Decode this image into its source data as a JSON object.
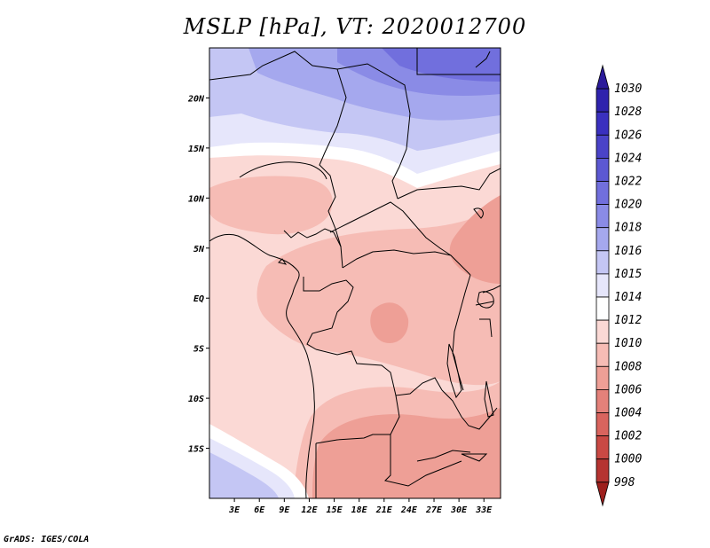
{
  "title": "MSLP [hPa], VT: 2020012700",
  "credit": "GrADS: IGES/COLA",
  "map": {
    "lon_range": [
      0,
      35
    ],
    "lat_range": [
      -20,
      25
    ],
    "lat_labels": [
      {
        "lat": 20,
        "label": "20N"
      },
      {
        "lat": 15,
        "label": "15N"
      },
      {
        "lat": 10,
        "label": "10N"
      },
      {
        "lat": 5,
        "label": "5N"
      },
      {
        "lat": 0,
        "label": "EQ"
      },
      {
        "lat": -5,
        "label": "5S"
      },
      {
        "lat": -10,
        "label": "10S"
      },
      {
        "lat": -15,
        "label": "15S"
      }
    ],
    "lon_labels": [
      {
        "lon": 3,
        "label": "3E"
      },
      {
        "lon": 6,
        "label": "6E"
      },
      {
        "lon": 9,
        "label": "9E"
      },
      {
        "lon": 12,
        "label": "12E"
      },
      {
        "lon": 15,
        "label": "15E"
      },
      {
        "lon": 18,
        "label": "18E"
      },
      {
        "lon": 21,
        "label": "21E"
      },
      {
        "lon": 24,
        "label": "24E"
      },
      {
        "lon": 27,
        "label": "27E"
      },
      {
        "lon": 30,
        "label": "30E"
      },
      {
        "lon": 33,
        "label": "33E"
      }
    ]
  },
  "colorbar": {
    "levels": [
      "1030",
      "1028",
      "1026",
      "1024",
      "1022",
      "1020",
      "1018",
      "1016",
      "1015",
      "1014",
      "1012",
      "1010",
      "1008",
      "1006",
      "1004",
      "1002",
      "1000",
      "998"
    ],
    "colors": [
      "#2b1b9a",
      "#2f23ad",
      "#3a30bf",
      "#4a43c8",
      "#5c58d2",
      "#716fdd",
      "#8a8be6",
      "#a5a8ee",
      "#c4c6f4",
      "#e6e6fb",
      "#ffffff",
      "#fbd9d5",
      "#f6bcb5",
      "#ee9f96",
      "#e4817a",
      "#d9645e",
      "#c94944",
      "#b53431",
      "#9d1f1c"
    ]
  },
  "field_colors": {
    "p1016": "#c4c6f4",
    "p1015": "#e6e6fb",
    "p1014": "#ffffff",
    "p1012": "#fbd9d5",
    "p1010": "#f6bcb5",
    "p1008": "#ee9f96",
    "p1018": "#a5a8ee",
    "p1020": "#8a8be6",
    "p1022": "#716fdd"
  }
}
